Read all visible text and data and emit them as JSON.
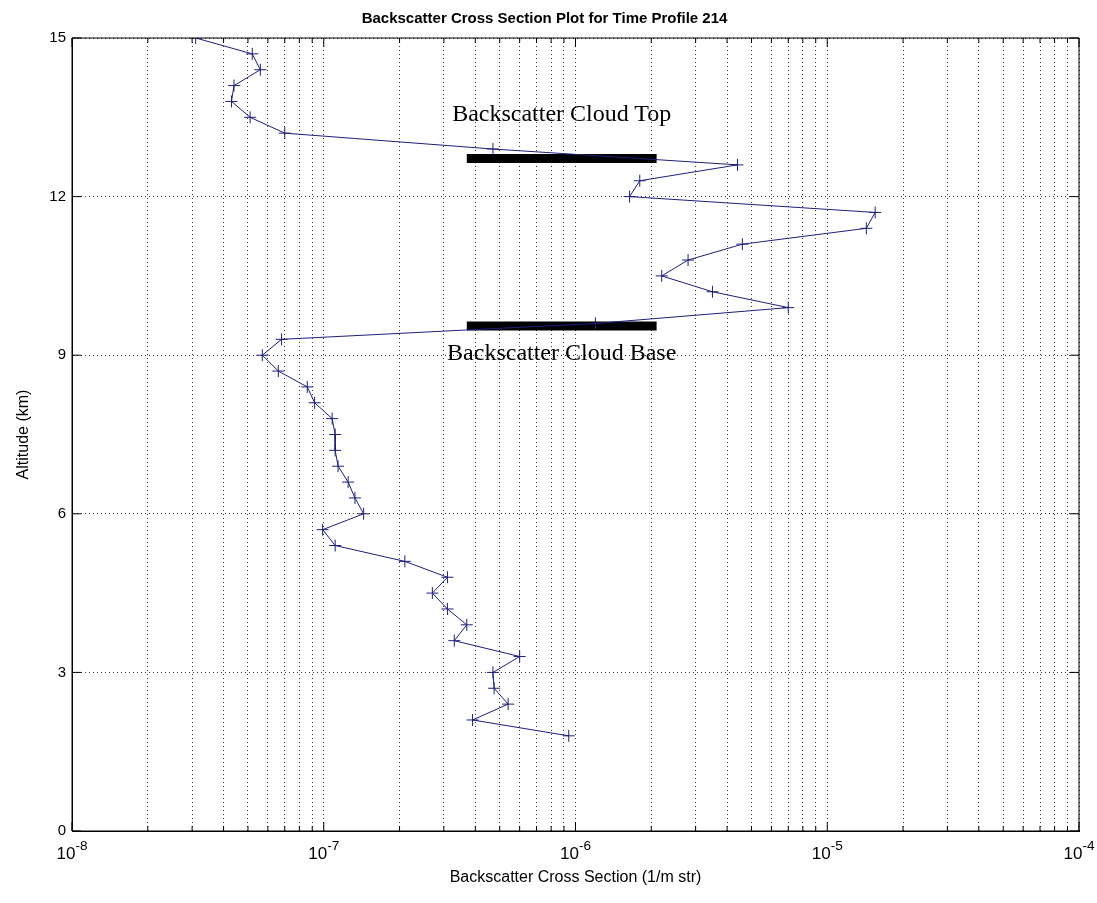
{
  "chart_data": {
    "type": "line",
    "title": "Backscatter Cross Section Plot for Time Profile 214",
    "xlabel": "Backscatter Cross Section (1/m str)",
    "ylabel": "Altitude (km)",
    "log": "x",
    "grid": true,
    "legend": false,
    "marker": "cross",
    "line_style": "solid",
    "xlim": [
      1e-08,
      0.0001
    ],
    "xticks": [
      {
        "value": 1e-08,
        "label": "10$^{-8}$"
      },
      {
        "value": 2e-08,
        "label": null
      },
      {
        "value": 3e-08,
        "label": null
      },
      {
        "value": 4e-08,
        "label": null
      },
      {
        "value": 5e-08,
        "label": null
      },
      {
        "value": 6e-08,
        "label": null
      },
      {
        "value": 7e-08,
        "label": null
      },
      {
        "value": 8e-08,
        "label": null
      },
      {
        "value": 9e-08,
        "label": null
      },
      {
        "value": 1e-07,
        "label": "10$^{-7}$"
      },
      {
        "value": 2e-07,
        "label": null
      },
      {
        "value": 3e-07,
        "label": null
      },
      {
        "value": 4e-07,
        "label": null
      },
      {
        "value": 5e-07,
        "label": null
      },
      {
        "value": 6e-07,
        "label": null
      },
      {
        "value": 7e-07,
        "label": null
      },
      {
        "value": 8e-07,
        "label": null
      },
      {
        "value": 9e-07,
        "label": null
      },
      {
        "value": 1e-06,
        "label": "10$^{-6}$"
      },
      {
        "value": 2e-06,
        "label": null
      },
      {
        "value": 3e-06,
        "label": null
      },
      {
        "value": 4e-06,
        "label": null
      },
      {
        "value": 5e-06,
        "label": null
      },
      {
        "value": 6e-06,
        "label": null
      },
      {
        "value": 7e-06,
        "label": null
      },
      {
        "value": 8e-06,
        "label": null
      },
      {
        "value": 9e-06,
        "label": null
      },
      {
        "value": 1e-05,
        "label": "10$^{-5}$"
      },
      {
        "value": 2e-05,
        "label": null
      },
      {
        "value": 3e-05,
        "label": null
      },
      {
        "value": 4e-05,
        "label": null
      },
      {
        "value": 5e-05,
        "label": null
      },
      {
        "value": 6e-05,
        "label": null
      },
      {
        "value": 7e-05,
        "label": null
      },
      {
        "value": 8e-05,
        "label": null
      },
      {
        "value": 9e-05,
        "label": null
      },
      {
        "value": 0.0001,
        "label": "10$^{-4}$"
      }
    ],
    "ylim": [
      0,
      15
    ],
    "yticks": [
      0,
      3,
      6,
      9,
      12,
      15
    ],
    "series": [
      {
        "color": "#1f1f7a",
        "x": [
          3.1e-08,
          5.2e-08,
          5.6e-08,
          4.4e-08,
          4.3e-08,
          5.1e-08,
          7e-08,
          4.7e-07,
          4.4e-06,
          1.8e-06,
          1.64e-06,
          1.55e-05,
          1.43e-05,
          4.6e-06,
          2.8e-06,
          2.2e-06,
          3.5e-06,
          7e-06,
          1.2e-06,
          6.8e-08,
          5.7e-08,
          6.6e-08,
          8.6e-08,
          9.2e-08,
          1.08e-07,
          1.11e-07,
          1.11e-07,
          1.14e-07,
          1.25e-07,
          1.33e-07,
          1.44e-07,
          9.9e-08,
          1.11e-07,
          2.1e-07,
          3.1e-07,
          2.7e-07,
          3.1e-07,
          3.7e-07,
          3.3e-07,
          6e-07,
          4.7e-07,
          4.75e-07,
          5.4e-07,
          3.9e-07,
          9.4e-07
        ],
        "values": [
          15,
          14.7,
          14.4,
          14.1,
          13.8,
          13.5,
          13.2,
          12.9,
          12.6,
          12.3,
          12,
          11.7,
          11.4,
          11.1,
          10.8,
          10.5,
          10.2,
          9.9,
          9.6,
          9.3,
          9,
          8.7,
          8.4,
          8.1,
          7.8,
          7.5,
          7.2,
          6.9,
          6.6,
          6.3,
          6,
          5.7,
          5.4,
          5.1,
          4.8,
          4.5,
          4.2,
          3.9,
          3.6,
          3.3,
          3,
          2.7,
          2.4,
          2.1,
          1.8
        ]
      },
      {
        "type": "line",
        "color": "#000000",
        "marker": "none",
        "x": [
          3.7e-07,
          2.1e-06
        ],
        "values": [
          12.72,
          12.72
        ]
      },
      {
        "type": "line",
        "color": "#000000",
        "marker": "none",
        "x": [
          3.7e-07,
          2.1e-06
        ],
        "values": [
          9.55,
          9.55
        ]
      }
    ],
    "annotations": [
      "Backscatter Cloud Top",
      "Backscatter Cloud Base"
    ]
  }
}
